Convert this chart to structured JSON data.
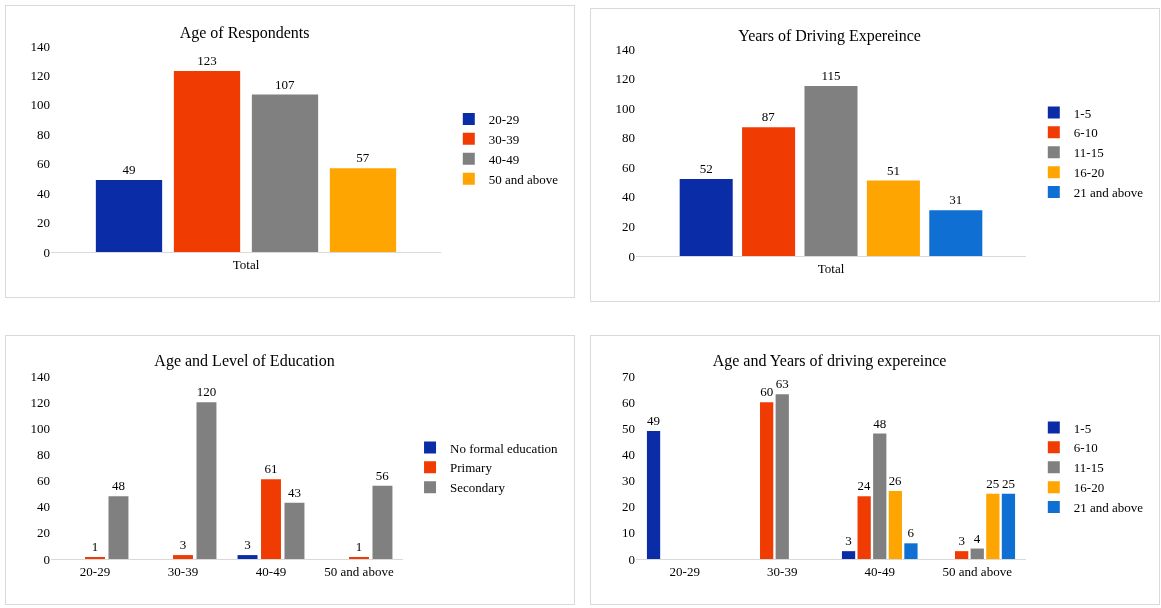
{
  "chart_data": [
    {
      "type": "bar",
      "title": "Age of Respondents",
      "categories": [
        "Total"
      ],
      "series": [
        {
          "name": "20-29",
          "color": "#0a2ca6",
          "values": [
            49
          ]
        },
        {
          "name": "30-39",
          "color": "#f03c02",
          "values": [
            123
          ]
        },
        {
          "name": "40-49",
          "color": "#808080",
          "values": [
            107
          ]
        },
        {
          "name": "50 and above",
          "color": "#ffa502",
          "values": [
            57
          ]
        }
      ],
      "ylim": [
        0,
        140
      ],
      "yticks": [
        0,
        20,
        40,
        60,
        80,
        100,
        120,
        140
      ],
      "grid": false,
      "legend": "right",
      "data_labels": true
    },
    {
      "type": "bar",
      "title": "Years of Driving Expereince",
      "categories": [
        "Total"
      ],
      "series": [
        {
          "name": "1-5",
          "color": "#0a2ca6",
          "values": [
            52
          ]
        },
        {
          "name": "6-10",
          "color": "#f03c02",
          "values": [
            87
          ]
        },
        {
          "name": "11-15",
          "color": "#808080",
          "values": [
            115
          ]
        },
        {
          "name": "16-20",
          "color": "#ffa502",
          "values": [
            51
          ]
        },
        {
          "name": "21 and above",
          "color": "#0f6fd2",
          "values": [
            31
          ]
        }
      ],
      "ylim": [
        0,
        140
      ],
      "yticks": [
        0,
        20,
        40,
        60,
        80,
        100,
        120,
        140
      ],
      "grid": false,
      "legend": "right",
      "data_labels": true
    },
    {
      "type": "bar",
      "title": "Age and Level of Education",
      "categories": [
        "20-29",
        "30-39",
        "40-49",
        "50 and above"
      ],
      "series": [
        {
          "name": "No formal education",
          "color": "#0a2ca6",
          "values": [
            null,
            null,
            3,
            null
          ]
        },
        {
          "name": "Primary",
          "color": "#f03c02",
          "values": [
            1,
            3,
            61,
            1
          ]
        },
        {
          "name": "Secondary",
          "color": "#808080",
          "values": [
            48,
            120,
            43,
            56
          ]
        }
      ],
      "ylim": [
        0,
        140
      ],
      "yticks": [
        0,
        20,
        40,
        60,
        80,
        100,
        120,
        140
      ],
      "grid": false,
      "legend": "right",
      "data_labels": true
    },
    {
      "type": "bar",
      "title": "Age and Years of driving expereince",
      "categories": [
        "20-29",
        "30-39",
        "40-49",
        "50 and above"
      ],
      "series": [
        {
          "name": "1-5",
          "color": "#0a2ca6",
          "values": [
            49,
            null,
            3,
            null
          ]
        },
        {
          "name": "6-10",
          "color": "#f03c02",
          "values": [
            null,
            60,
            24,
            3
          ]
        },
        {
          "name": "11-15",
          "color": "#808080",
          "values": [
            null,
            63,
            48,
            4
          ]
        },
        {
          "name": "16-20",
          "color": "#ffa502",
          "values": [
            null,
            null,
            26,
            25
          ]
        },
        {
          "name": "21 and above",
          "color": "#0f6fd2",
          "values": [
            null,
            null,
            6,
            25
          ]
        }
      ],
      "ylim": [
        0,
        70
      ],
      "yticks": [
        0,
        10,
        20,
        30,
        40,
        50,
        60,
        70
      ],
      "grid": false,
      "legend": "right",
      "data_labels": true
    }
  ]
}
